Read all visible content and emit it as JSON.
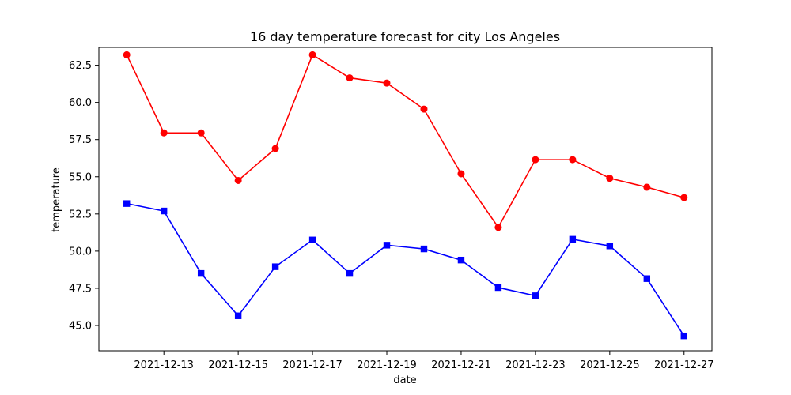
{
  "chart_data": {
    "type": "line",
    "title": "16 day temperature forecast for city Los Angeles",
    "xlabel": "date",
    "ylabel": "temperature",
    "x": [
      "2021-12-12",
      "2021-12-13",
      "2021-12-14",
      "2021-12-15",
      "2021-12-16",
      "2021-12-17",
      "2021-12-18",
      "2021-12-19",
      "2021-12-20",
      "2021-12-21",
      "2021-12-22",
      "2021-12-23",
      "2021-12-24",
      "2021-12-25",
      "2021-12-26",
      "2021-12-27"
    ],
    "x_tick_labels": [
      "2021-12-13",
      "2021-12-15",
      "2021-12-17",
      "2021-12-19",
      "2021-12-21",
      "2021-12-23",
      "2021-12-25",
      "2021-12-27"
    ],
    "ylim": [
      43.3,
      63.7
    ],
    "y_ticks": [
      45.0,
      47.5,
      50.0,
      52.5,
      55.0,
      57.5,
      60.0,
      62.5
    ],
    "y_tick_labels": [
      "45.0",
      "47.5",
      "50.0",
      "52.5",
      "55.0",
      "57.5",
      "60.0",
      "62.5"
    ],
    "grid": false,
    "series": [
      {
        "color": "#ff0000",
        "marker": "circle",
        "values": [
          63.2,
          57.95,
          57.95,
          54.75,
          56.9,
          63.2,
          61.65,
          61.3,
          59.55,
          55.2,
          51.6,
          56.15,
          56.15,
          54.9,
          54.3,
          53.6
        ]
      },
      {
        "color": "#0000ff",
        "marker": "square",
        "values": [
          53.2,
          52.7,
          48.5,
          45.65,
          48.95,
          50.75,
          48.5,
          50.4,
          50.15,
          49.4,
          47.55,
          47.0,
          50.8,
          50.35,
          48.15,
          44.3
        ]
      }
    ]
  }
}
